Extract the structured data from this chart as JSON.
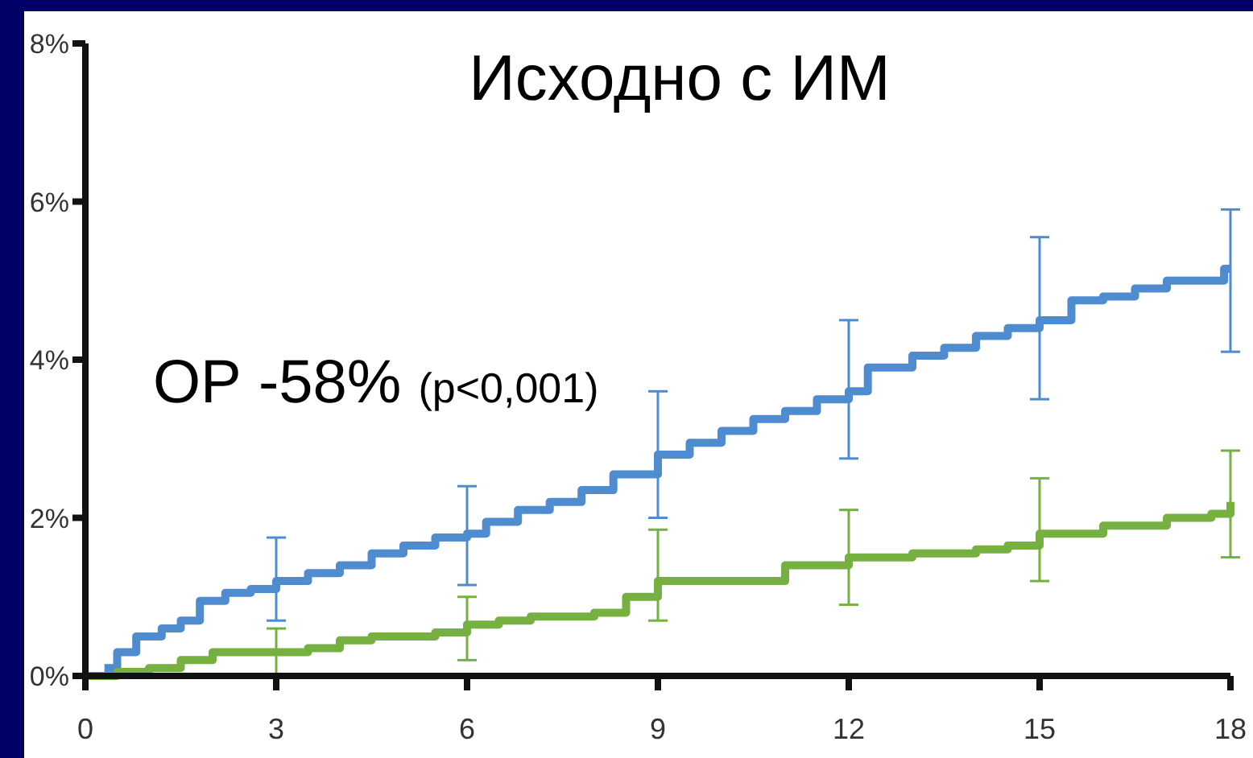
{
  "chart_data": {
    "type": "step",
    "title": "Исходно с ИМ",
    "annotations": [
      "ОР -58% (p<0,001)"
    ],
    "xlim": [
      0,
      18
    ],
    "xticks": [
      0,
      3,
      6,
      9,
      12,
      15,
      18
    ],
    "ylim": [
      0,
      8
    ],
    "yticks": [
      {
        "value": 0,
        "label": "0%"
      },
      {
        "value": 2,
        "label": "2%"
      },
      {
        "value": 4,
        "label": "4%"
      },
      {
        "value": 6,
        "label": "6%"
      },
      {
        "value": 8,
        "label": "8%"
      }
    ],
    "grid": false,
    "marker": "none",
    "line_style": "solid",
    "series": [
      {
        "color": "#4f8ccf",
        "x": [
          0.3,
          0.5,
          0.8,
          1.2,
          1.5,
          1.8,
          2.2,
          2.6,
          3,
          3.5,
          4,
          4.5,
          5,
          5.5,
          6,
          6.3,
          6.8,
          7.3,
          7.8,
          8.3,
          9,
          9.5,
          10,
          10.5,
          11,
          11.5,
          12,
          12.3,
          13,
          13.5,
          14,
          14.5,
          15,
          15.5,
          16,
          16.5,
          17,
          17.5,
          17.9,
          18
        ],
        "values": [
          0.1,
          0.3,
          0.5,
          0.6,
          0.7,
          0.95,
          1.05,
          1.1,
          1.2,
          1.3,
          1.4,
          1.55,
          1.65,
          1.75,
          1.8,
          1.95,
          2.1,
          2.2,
          2.35,
          2.55,
          2.8,
          2.95,
          3.1,
          3.25,
          3.35,
          3.5,
          3.6,
          3.9,
          4.05,
          4.15,
          4.3,
          4.4,
          4.5,
          4.75,
          4.8,
          4.9,
          5.0,
          5.0,
          5.15,
          5.15
        ],
        "errors": [
          null,
          null,
          null,
          null,
          null,
          null,
          null,
          null,
          [
            0.7,
            1.75
          ],
          null,
          null,
          null,
          null,
          null,
          [
            1.15,
            2.4
          ],
          null,
          null,
          null,
          null,
          null,
          [
            2.0,
            3.6
          ],
          null,
          null,
          null,
          null,
          null,
          [
            2.75,
            4.5
          ],
          null,
          null,
          null,
          null,
          null,
          [
            3.5,
            5.55
          ],
          null,
          null,
          null,
          null,
          null,
          null,
          [
            4.1,
            5.9
          ]
        ]
      },
      {
        "color": "#76b041",
        "x": [
          0,
          0.5,
          1,
          1.5,
          2,
          3,
          3.5,
          4,
          4.5,
          5.5,
          6,
          6.5,
          7,
          8,
          8.5,
          9,
          10.5,
          11,
          12,
          13,
          14,
          14.5,
          15,
          16,
          17,
          17.7,
          18
        ],
        "values": [
          0,
          0.05,
          0.1,
          0.2,
          0.3,
          0.3,
          0.35,
          0.45,
          0.5,
          0.55,
          0.65,
          0.7,
          0.75,
          0.8,
          1.0,
          1.2,
          1.2,
          1.4,
          1.5,
          1.55,
          1.6,
          1.65,
          1.8,
          1.9,
          2.0,
          2.05,
          2.2
        ],
        "errors": [
          null,
          null,
          null,
          null,
          null,
          [
            0.0,
            0.6
          ],
          null,
          null,
          null,
          null,
          [
            0.2,
            1.0
          ],
          null,
          null,
          null,
          null,
          [
            0.7,
            1.85
          ],
          null,
          null,
          [
            0.9,
            2.1
          ],
          null,
          null,
          null,
          [
            1.2,
            2.5
          ],
          null,
          null,
          null,
          [
            1.5,
            2.85
          ]
        ]
      }
    ]
  }
}
